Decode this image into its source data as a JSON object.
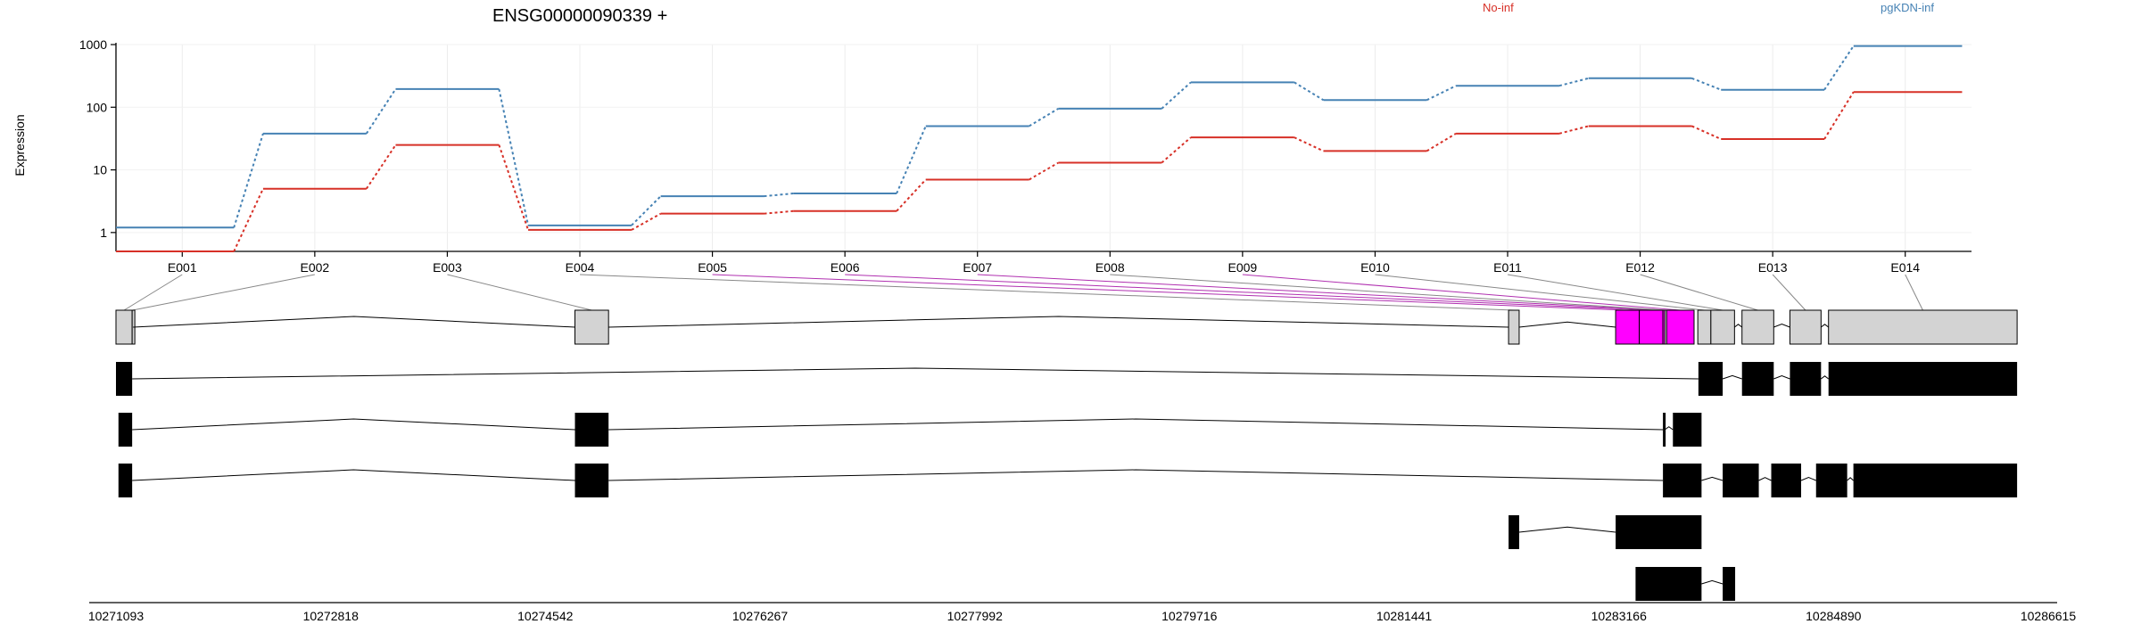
{
  "chart_data": {
    "type": "line",
    "title": "ENSG00000090339 +",
    "ylabel": "Expression",
    "xlabel": "",
    "y_scale": "log",
    "ylim": [
      0.5,
      1000
    ],
    "y_ticks": [
      "1",
      "10",
      "100",
      "1000"
    ],
    "grid": true,
    "legend_placement": "top",
    "categories": [
      "E001",
      "E002",
      "E003",
      "E004",
      "E005",
      "E006",
      "E007",
      "E008",
      "E009",
      "E010",
      "E011",
      "E012",
      "E013",
      "E014"
    ],
    "series": [
      {
        "name": "No-inf",
        "color": "#d73027",
        "values": [
          0.5,
          5,
          25,
          1.1,
          2,
          2.2,
          7,
          13,
          33,
          20,
          38,
          50,
          31,
          175
        ]
      },
      {
        "name": "pgKDN-inf",
        "color": "#4682b4",
        "values": [
          1.2,
          38,
          195,
          1.3,
          3.8,
          4.2,
          50,
          95,
          250,
          130,
          220,
          290,
          190,
          950
        ]
      }
    ],
    "genomic_axis": {
      "range": [
        10271093,
        10286615
      ],
      "tick_labels": [
        "10271093",
        "10272818",
        "10274542",
        "10276267",
        "10277992",
        "10279716",
        "10281441",
        "10283166",
        "10284890",
        "10286615"
      ]
    },
    "exon_bins": [
      {
        "id": "E001",
        "start": 10271093,
        "end": 10271223,
        "significant": false
      },
      {
        "id": "E002",
        "start": 10271223,
        "end": 10271230,
        "significant": false
      },
      {
        "id": "E003",
        "start": 10274780,
        "end": 10275050,
        "significant": false
      },
      {
        "id": "E004",
        "start": 10282280,
        "end": 10282365,
        "significant": false
      },
      {
        "id": "E005",
        "start": 10283140,
        "end": 10283330,
        "significant": true
      },
      {
        "id": "E006",
        "start": 10283330,
        "end": 10283520,
        "significant": true
      },
      {
        "id": "E007",
        "start": 10283520,
        "end": 10283535,
        "significant": true
      },
      {
        "id": "E008",
        "start": 10283535,
        "end": 10283550,
        "significant": false
      },
      {
        "id": "E009",
        "start": 10283550,
        "end": 10283770,
        "significant": true
      },
      {
        "id": "E010",
        "start": 10283800,
        "end": 10283905,
        "significant": false
      },
      {
        "id": "E011",
        "start": 10283905,
        "end": 10284095,
        "significant": false
      },
      {
        "id": "E012",
        "start": 10284155,
        "end": 10284410,
        "significant": false
      },
      {
        "id": "E013",
        "start": 10284540,
        "end": 10284790,
        "significant": false
      },
      {
        "id": "E014",
        "start": 10284850,
        "end": 10286365,
        "significant": false
      }
    ],
    "transcripts": [
      {
        "exons": [
          [
            10271093,
            10271223
          ],
          [
            10283805,
            10284000
          ],
          [
            10284155,
            10284410
          ],
          [
            10284540,
            10284790
          ],
          [
            10284850,
            10286365
          ]
        ]
      },
      {
        "exons": [
          [
            10271113,
            10271223
          ],
          [
            10274780,
            10275050
          ],
          [
            10283520,
            10283535
          ],
          [
            10283600,
            10283830
          ]
        ]
      },
      {
        "exons": [
          [
            10271113,
            10271223
          ],
          [
            10274780,
            10275050
          ],
          [
            10283520,
            10283830
          ],
          [
            10284000,
            10284290
          ],
          [
            10284390,
            10284630
          ],
          [
            10284750,
            10285000
          ],
          [
            10285050,
            10286365
          ]
        ]
      },
      {
        "exons": [
          [
            10282280,
            10282365
          ],
          [
            10283140,
            10283830
          ]
        ]
      },
      {
        "exons": [
          [
            10283300,
            10283830
          ],
          [
            10284000,
            10284100
          ]
        ]
      }
    ]
  }
}
